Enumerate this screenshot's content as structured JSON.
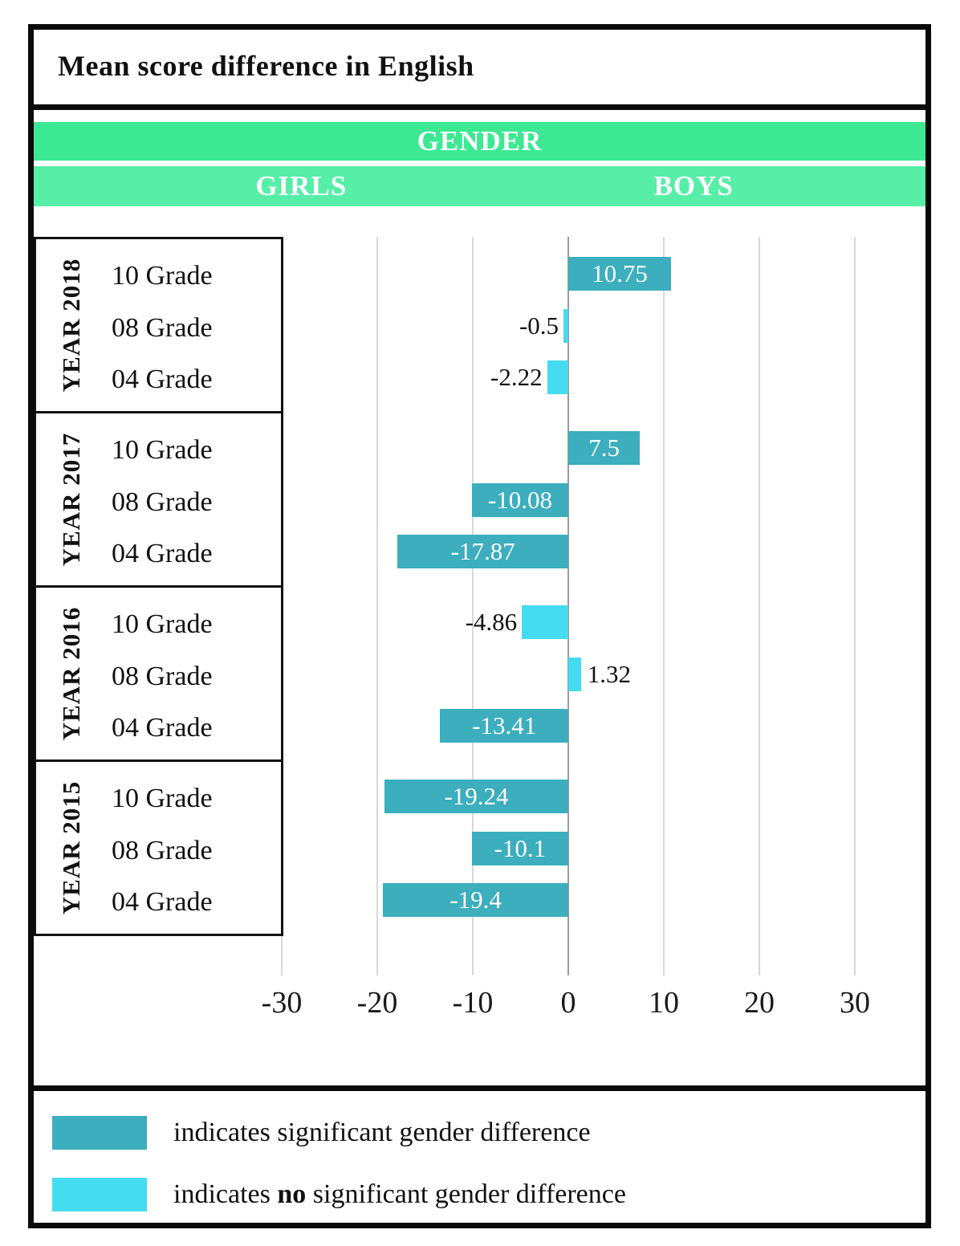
{
  "title": "Mean score difference in English",
  "header": {
    "gender_label": "GENDER",
    "girls_label": "GIRLS",
    "boys_label": "BOYS"
  },
  "colors": {
    "band_primary": "#3ce992",
    "band_secondary": "#57efa8",
    "significant": "#3caebe",
    "not_significant": "#45dbf0",
    "gridline": "#d9d9d9",
    "zero_line": "#9c9c9c",
    "frame": "#0a0a0a"
  },
  "chart_data": {
    "type": "bar",
    "orientation": "horizontal",
    "title": "Mean score difference in English",
    "xlabel": "",
    "ylabel": "",
    "xlim": [
      -30,
      30
    ],
    "x_ticks": [
      -30,
      -20,
      -10,
      0,
      10,
      20,
      30
    ],
    "grid": true,
    "groups": [
      {
        "year_label": "YEAR 2018",
        "rows": [
          {
            "grade": "10 Grade",
            "value": 10.75,
            "label": "10.75",
            "significant": true
          },
          {
            "grade": "08 Grade",
            "value": -0.5,
            "label": "-0.5",
            "significant": false
          },
          {
            "grade": "04 Grade",
            "value": -2.22,
            "label": "-2.22",
            "significant": false
          }
        ]
      },
      {
        "year_label": "YEAR 2017",
        "rows": [
          {
            "grade": "10 Grade",
            "value": 7.5,
            "label": "7.5",
            "significant": true
          },
          {
            "grade": "08 Grade",
            "value": -10.08,
            "label": "-10.08",
            "significant": true
          },
          {
            "grade": "04 Grade",
            "value": -17.87,
            "label": "-17.87",
            "significant": true
          }
        ]
      },
      {
        "year_label": "YEAR 2016",
        "rows": [
          {
            "grade": "10 Grade",
            "value": -4.86,
            "label": "-4.86",
            "significant": false
          },
          {
            "grade": "08 Grade",
            "value": 1.32,
            "label": "1.32",
            "significant": false
          },
          {
            "grade": "04 Grade",
            "value": -13.41,
            "label": "-13.41",
            "significant": true
          }
        ]
      },
      {
        "year_label": "YEAR 2015",
        "rows": [
          {
            "grade": "10 Grade",
            "value": -19.24,
            "label": "-19.24",
            "significant": true
          },
          {
            "grade": "08 Grade",
            "value": -10.1,
            "label": "-10.1",
            "significant": true
          },
          {
            "grade": "04 Grade",
            "value": -19.4,
            "label": "-19.4",
            "significant": true
          }
        ]
      }
    ]
  },
  "legend": [
    {
      "color_key": "significant",
      "parts": [
        {
          "text": "indicates significant gender difference",
          "bold": false
        }
      ]
    },
    {
      "color_key": "not_significant",
      "parts": [
        {
          "text": "indicates ",
          "bold": false
        },
        {
          "text": "no",
          "bold": true
        },
        {
          "text": " significant gender difference",
          "bold": false
        }
      ]
    }
  ]
}
